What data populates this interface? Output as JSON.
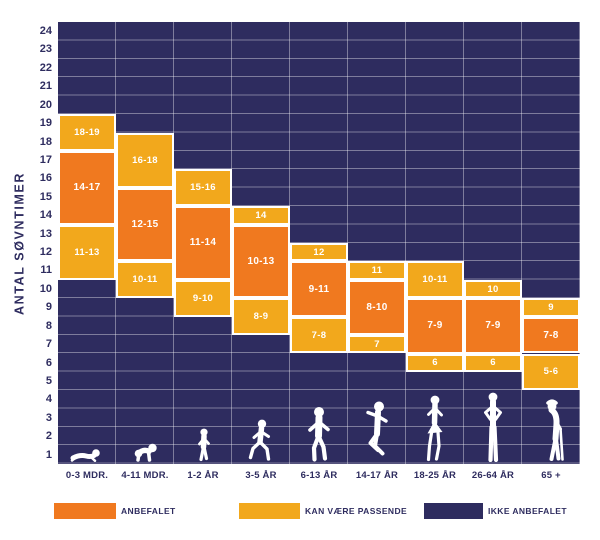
{
  "chart_data": {
    "type": "range-bar",
    "title": "",
    "xlabel": "",
    "ylabel": "ANTAL SØVNTIMER",
    "y_range": [
      1,
      24
    ],
    "grid": true,
    "legend_position": "bottom",
    "columns": [
      {
        "label": "0-3 MDR.",
        "icon": "baby-tummy-icon",
        "upper_ok": {
          "range": [
            18,
            19
          ],
          "label": "18-19"
        },
        "recommended": {
          "range": [
            14,
            17
          ],
          "label": "14-17"
        },
        "lower_ok": {
          "range": [
            11,
            13
          ],
          "label": "11-13"
        }
      },
      {
        "label": "4-11 MDR.",
        "icon": "baby-crawling-icon",
        "upper_ok": {
          "range": [
            16,
            18
          ],
          "label": "16-18"
        },
        "recommended": {
          "range": [
            12,
            15
          ],
          "label": "12-15"
        },
        "lower_ok": {
          "range": [
            10,
            11
          ],
          "label": "10-11"
        }
      },
      {
        "label": "1-2 ÅR",
        "icon": "toddler-icon",
        "upper_ok": {
          "range": [
            15,
            16
          ],
          "label": "15-16"
        },
        "recommended": {
          "range": [
            11,
            14
          ],
          "label": "11-14"
        },
        "lower_ok": {
          "range": [
            9,
            10
          ],
          "label": "9-10"
        }
      },
      {
        "label": "3-5 ÅR",
        "icon": "child-running-icon",
        "upper_ok": {
          "range": [
            14,
            14
          ],
          "label": "14"
        },
        "recommended": {
          "range": [
            10,
            13
          ],
          "label": "10-13"
        },
        "lower_ok": {
          "range": [
            8,
            9
          ],
          "label": "8-9"
        }
      },
      {
        "label": "6-13 ÅR",
        "icon": "boy-running-icon",
        "upper_ok": {
          "range": [
            12,
            12
          ],
          "label": "12"
        },
        "recommended": {
          "range": [
            9,
            11
          ],
          "label": "9-11"
        },
        "lower_ok": {
          "range": [
            7,
            8
          ],
          "label": "7-8"
        }
      },
      {
        "label": "14-17 ÅR",
        "icon": "teen-jumping-icon",
        "upper_ok": {
          "range": [
            11,
            11
          ],
          "label": "11"
        },
        "recommended": {
          "range": [
            8,
            10
          ],
          "label": "8-10"
        },
        "lower_ok": {
          "range": [
            7,
            7
          ],
          "label": "7"
        }
      },
      {
        "label": "18-25 ÅR",
        "icon": "young-woman-icon",
        "upper_ok": {
          "range": [
            10,
            11
          ],
          "label": "10-11"
        },
        "recommended": {
          "range": [
            7,
            9
          ],
          "label": "7-9"
        },
        "lower_ok": {
          "range": [
            6,
            6
          ],
          "label": "6"
        }
      },
      {
        "label": "26-64 ÅR",
        "icon": "adult-woman-icon",
        "upper_ok": {
          "range": [
            10,
            10
          ],
          "label": "10"
        },
        "recommended": {
          "range": [
            7,
            9
          ],
          "label": "7-9"
        },
        "lower_ok": {
          "range": [
            6,
            6
          ],
          "label": "6"
        }
      },
      {
        "label": "65 +",
        "icon": "elderly-man-icon",
        "upper_ok": {
          "range": [
            9,
            9
          ],
          "label": "9"
        },
        "recommended": {
          "range": [
            7,
            8
          ],
          "label": "7-8"
        },
        "lower_ok": {
          "range": [
            5,
            6
          ],
          "label": "5-6"
        }
      }
    ],
    "legend": [
      {
        "label": "ANBEFALET",
        "color": "#F0791F"
      },
      {
        "label": "KAN VÆRE PASSENDE",
        "color": "#F2A81C"
      },
      {
        "label": "IKKE ANBEFALET",
        "color": "#2E2C5F"
      }
    ]
  }
}
